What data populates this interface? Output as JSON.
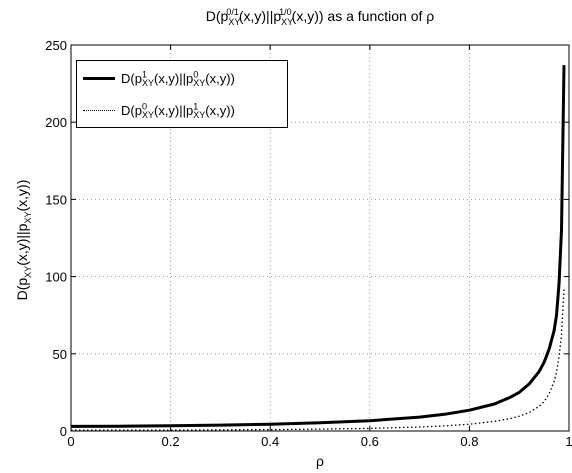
{
  "chart_data": {
    "type": "line",
    "title": {
      "prefix": "D(p",
      "sub1": "XY",
      "sup1": "0/1",
      "mid": "(x,y)||p",
      "sub2": "XY",
      "sup2": "1/0",
      "suffix": "(x,y)) as a function of ρ"
    },
    "xlabel": "ρ",
    "ylabel": {
      "p1": "D(p",
      "sub1": "XY",
      "p2": "(x,y)||p",
      "sub2": "XY",
      "p3": "(x,y))"
    },
    "xlim": [
      0,
      1
    ],
    "ylim": [
      0,
      250
    ],
    "xticks": [
      "0",
      "0.2",
      "0.4",
      "0.6",
      "0.8",
      "1"
    ],
    "yticks": [
      "0",
      "50",
      "100",
      "150",
      "200",
      "250"
    ],
    "grid": true,
    "legend_position": "top-left",
    "x": [
      0,
      0.1,
      0.2,
      0.3,
      0.4,
      0.5,
      0.6,
      0.7,
      0.75,
      0.8,
      0.85,
      0.88,
      0.9,
      0.92,
      0.94,
      0.95,
      0.96,
      0.97,
      0.975,
      0.98,
      0.985,
      0.99
    ],
    "series": [
      {
        "name": {
          "p1": "D(p",
          "sup1": "1",
          "sub1": "XY",
          "p2": "(x,y)||p",
          "sup2": "0",
          "sub2": "XY",
          "p3": "(x,y))"
        },
        "style": "solid",
        "values": [
          3,
          3.1,
          3.4,
          3.8,
          4.4,
          5.3,
          6.7,
          9,
          10.8,
          13.5,
          17.5,
          21.5,
          25,
          30.5,
          38.5,
          44.5,
          53,
          65,
          75,
          95,
          130,
          237
        ]
      },
      {
        "name": {
          "p1": "D(p",
          "sup1": "0",
          "sub1": "XY",
          "p2": "(x,y)||p",
          "sup2": "1",
          "sub2": "XY",
          "p3": "(x,y))"
        },
        "style": "dotted",
        "values": [
          0.5,
          0.5,
          0.6,
          0.7,
          0.9,
          1.2,
          1.7,
          2.6,
          3.3,
          4.4,
          6.2,
          7.9,
          9.5,
          12,
          16,
          19,
          24,
          32,
          38,
          48,
          62,
          92
        ]
      }
    ]
  }
}
